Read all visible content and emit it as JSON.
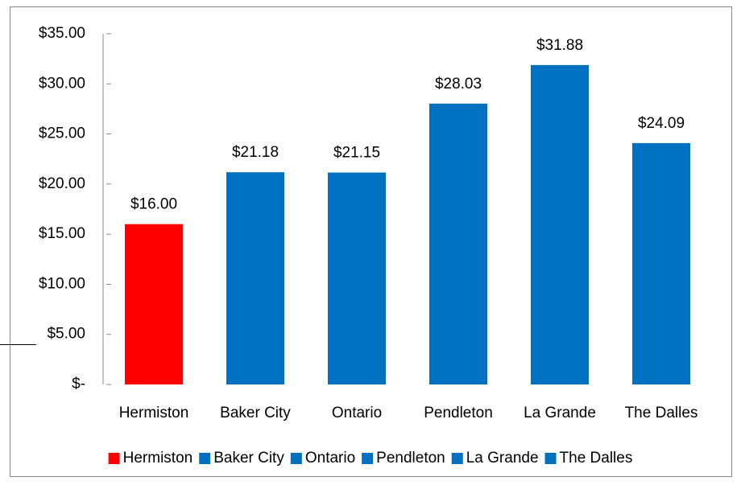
{
  "chart_data": {
    "type": "bar",
    "categories": [
      "Hermiston",
      "Baker City",
      "Ontario",
      "Pendleton",
      "La Grande",
      "The Dalles"
    ],
    "values": [
      16.0,
      21.18,
      21.15,
      28.03,
      31.88,
      24.09
    ],
    "value_labels": [
      "$16.00",
      "$21.18",
      "$21.15",
      "$28.03",
      "$31.88",
      "$24.09"
    ],
    "colors": [
      "#ff0000",
      "#0070c0",
      "#0070c0",
      "#0070c0",
      "#0070c0",
      "#0070c0"
    ],
    "ylim": [
      0,
      35
    ],
    "yticks": [
      {
        "value": 0,
        "label": "$-"
      },
      {
        "value": 5,
        "label": "$5.00"
      },
      {
        "value": 10,
        "label": "$10.00"
      },
      {
        "value": 15,
        "label": "$15.00"
      },
      {
        "value": 20,
        "label": "$20.00"
      },
      {
        "value": 25,
        "label": "$25.00"
      },
      {
        "value": 30,
        "label": "$30.00"
      },
      {
        "value": 35,
        "label": "$35.00"
      }
    ],
    "grid": false,
    "legend": "bottom"
  }
}
